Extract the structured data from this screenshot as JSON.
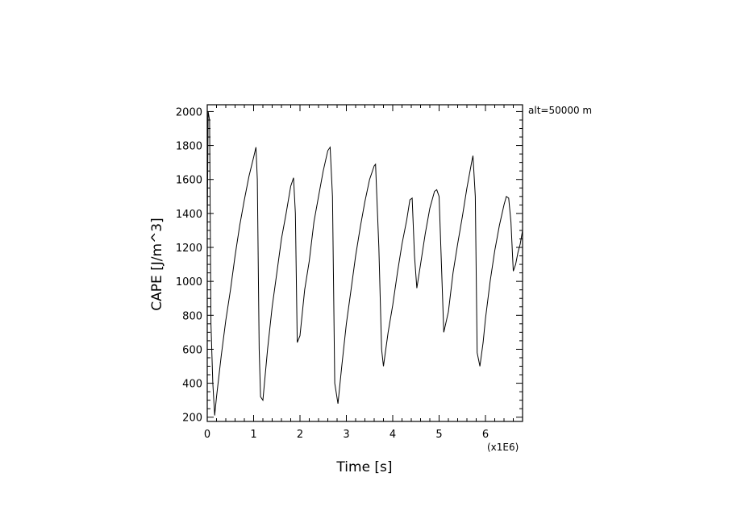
{
  "chart_data": {
    "type": "line",
    "xlabel": "Time [s]",
    "ylabel": "CAPE [J/m^3]",
    "x_multiplier_label": "(x1E6)",
    "annotation": "alt=50000  m",
    "xlim": [
      0,
      6.8
    ],
    "ylim": [
      175,
      2040
    ],
    "x_ticks": [
      0,
      1,
      2,
      3,
      4,
      5,
      6
    ],
    "y_ticks": [
      200,
      400,
      600,
      800,
      1000,
      1200,
      1400,
      1600,
      1800,
      2000
    ],
    "line_color": "#000000",
    "series": [
      {
        "x": [
          0.0,
          0.02,
          0.05,
          0.08,
          0.12,
          0.16,
          0.2,
          0.3,
          0.4,
          0.5,
          0.6,
          0.7,
          0.8,
          0.9,
          1.0,
          1.05,
          1.08,
          1.12,
          1.15,
          1.2,
          1.3,
          1.4,
          1.5,
          1.6,
          1.7,
          1.8,
          1.86,
          1.9,
          1.94,
          2.0,
          2.1,
          2.2,
          2.3,
          2.4,
          2.5,
          2.6,
          2.65,
          2.7,
          2.75,
          2.82,
          2.9,
          3.0,
          3.1,
          3.2,
          3.3,
          3.4,
          3.5,
          3.6,
          3.63,
          3.7,
          3.76,
          3.8,
          3.9,
          4.0,
          4.1,
          4.2,
          4.3,
          4.37,
          4.42,
          4.47,
          4.52,
          4.6,
          4.7,
          4.8,
          4.9,
          4.95,
          5.0,
          5.05,
          5.1,
          5.2,
          5.3,
          5.4,
          5.5,
          5.6,
          5.7,
          5.73,
          5.78,
          5.82,
          5.88,
          5.95,
          6.0,
          6.1,
          6.2,
          6.3,
          6.4,
          6.45,
          6.5,
          6.55,
          6.6,
          6.65,
          6.7,
          6.75,
          6.8
        ],
        "y": [
          1300,
          2000,
          1950,
          750,
          400,
          210,
          320,
          560,
          770,
          950,
          1150,
          1330,
          1480,
          1620,
          1730,
          1790,
          1600,
          600,
          320,
          300,
          600,
          850,
          1050,
          1250,
          1400,
          1560,
          1610,
          1400,
          640,
          680,
          950,
          1120,
          1350,
          1500,
          1650,
          1770,
          1790,
          1500,
          400,
          280,
          500,
          750,
          950,
          1150,
          1320,
          1470,
          1600,
          1680,
          1690,
          1200,
          600,
          500,
          700,
          860,
          1050,
          1220,
          1360,
          1480,
          1490,
          1150,
          960,
          1100,
          1280,
          1430,
          1530,
          1540,
          1500,
          1100,
          700,
          820,
          1050,
          1220,
          1380,
          1550,
          1700,
          1740,
          1500,
          580,
          500,
          640,
          780,
          1000,
          1180,
          1330,
          1450,
          1500,
          1490,
          1350,
          1060,
          1100,
          1170,
          1220,
          1300
        ]
      }
    ]
  }
}
